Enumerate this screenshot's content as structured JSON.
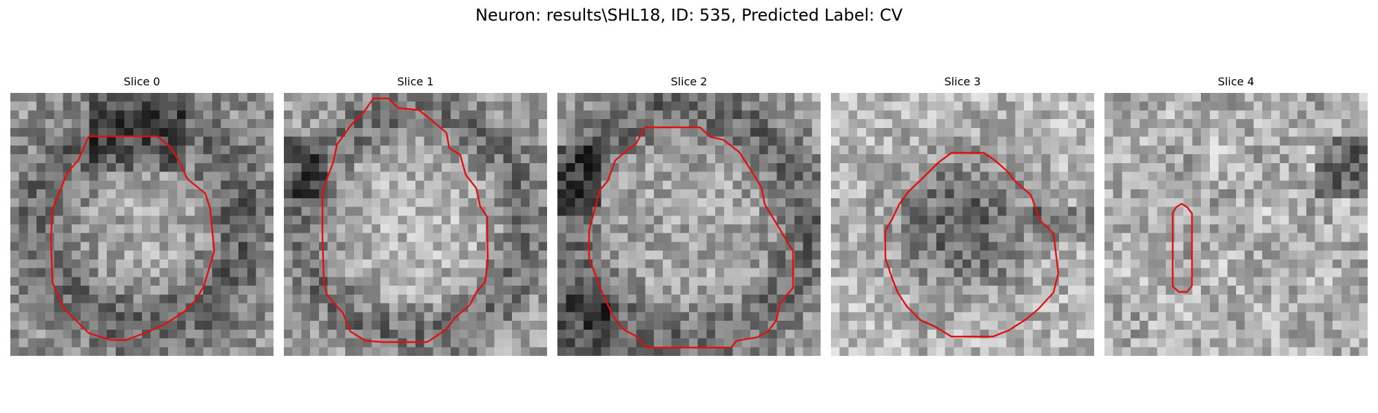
{
  "figure": {
    "title": "Neuron: results\\SHL18, ID: 535, Predicted Label: CV"
  },
  "panels": [
    {
      "title": "Slice 0",
      "seed": 11,
      "pattern": "ring-dark-top"
    },
    {
      "title": "Slice 1",
      "seed": 23,
      "pattern": "ring-dark-left"
    },
    {
      "title": "Slice 2",
      "seed": 37,
      "pattern": "ring-dark-edges"
    },
    {
      "title": "Slice 3",
      "seed": 41,
      "pattern": "dark-center"
    },
    {
      "title": "Slice 4",
      "seed": 53,
      "pattern": "light-noise"
    }
  ],
  "colors": {
    "contour": "#e01010",
    "background": "#ffffff"
  }
}
